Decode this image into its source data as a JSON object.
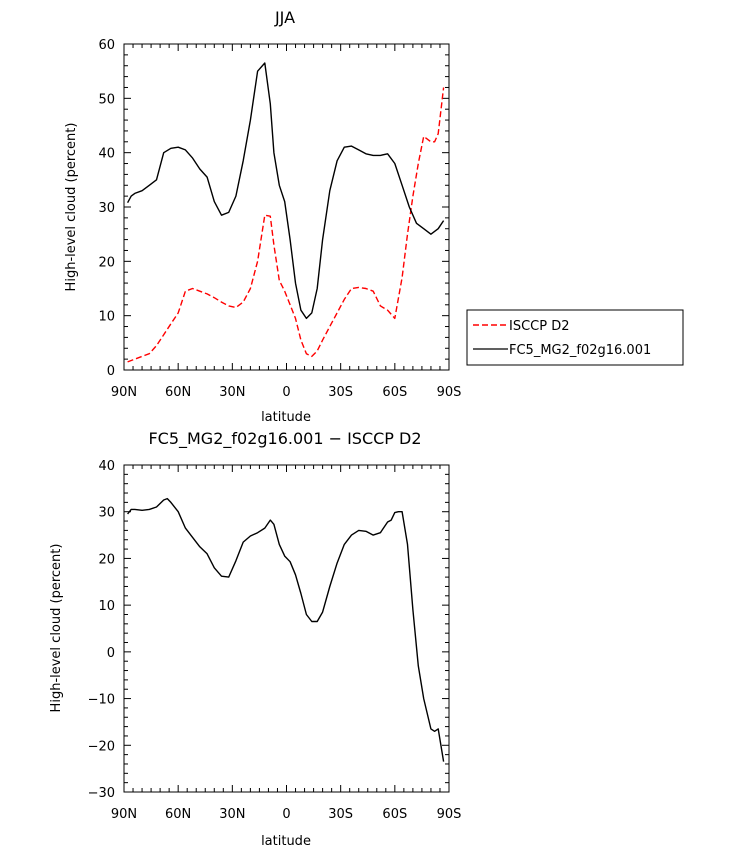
{
  "chart_data": [
    {
      "type": "line",
      "title": "JJA",
      "xlabel": "latitude",
      "ylabel": "High-level cloud (percent)",
      "xlim": [
        90,
        -90
      ],
      "ylim": [
        0,
        60
      ],
      "xticks": [
        {
          "value": 90,
          "label": "90N"
        },
        {
          "value": 60,
          "label": "60N"
        },
        {
          "value": 30,
          "label": "30N"
        },
        {
          "value": 0,
          "label": "0"
        },
        {
          "value": -30,
          "label": "30S"
        },
        {
          "value": -60,
          "label": "60S"
        },
        {
          "value": -90,
          "label": "90S"
        }
      ],
      "yticks": [
        0,
        10,
        20,
        30,
        40,
        50,
        60
      ],
      "grid": false,
      "legend": "right, outside plot",
      "series": [
        {
          "name": "ISCCP D2",
          "color": "#ff0000",
          "dash": "dashed",
          "x": [
            88,
            84,
            80,
            76,
            72,
            68,
            64,
            60,
            56,
            52,
            48,
            44,
            40,
            36,
            32,
            28,
            24,
            20,
            16,
            12,
            9,
            7,
            4,
            1,
            -2,
            -5,
            -8,
            -11,
            -14,
            -17,
            -20,
            -24,
            -28,
            -32,
            -36,
            -40,
            -44,
            -48,
            -52,
            -56,
            -60,
            -64,
            -67,
            -70,
            -73,
            -76,
            -80,
            -82,
            -84,
            -87
          ],
          "y": [
            1.5,
            2,
            2.5,
            3,
            4.5,
            6.5,
            8.5,
            10.5,
            14.5,
            15,
            14.5,
            14,
            13.3,
            12.5,
            11.8,
            11.5,
            12.5,
            15,
            20,
            28.5,
            28.3,
            23,
            16.5,
            14.5,
            12,
            9.5,
            5.5,
            3,
            2.5,
            3.5,
            5.5,
            8,
            10.5,
            13,
            15,
            15.2,
            15,
            14.5,
            11.8,
            11,
            9.5,
            17,
            25,
            32,
            38,
            43,
            42,
            42,
            43.5,
            52
          ]
        },
        {
          "name": "FC5_MG2_f02g16.001",
          "color": "#000000",
          "dash": "solid",
          "x": [
            88,
            86,
            84,
            80,
            76,
            72,
            68,
            64,
            60,
            56,
            52,
            48,
            44,
            40,
            36,
            32,
            28,
            24,
            20,
            16,
            12,
            9,
            7,
            4,
            1,
            -2,
            -5,
            -8,
            -11,
            -14,
            -17,
            -20,
            -24,
            -28,
            -32,
            -36,
            -40,
            -44,
            -48,
            -52,
            -56,
            -60,
            -64,
            -68,
            -72,
            -76,
            -80,
            -84,
            -87
          ],
          "y": [
            30.8,
            32,
            32.5,
            33,
            34,
            35,
            40,
            40.8,
            41,
            40.5,
            39,
            37,
            35.5,
            31,
            28.5,
            29,
            32,
            38.5,
            46,
            55,
            56.5,
            49,
            40,
            34,
            31,
            24,
            16,
            11,
            9.5,
            10.5,
            15,
            24,
            33,
            38.5,
            41,
            41.2,
            40.5,
            39.8,
            39.5,
            39.5,
            39.8,
            38,
            34,
            30,
            27,
            26,
            25,
            26,
            27.5
          ]
        }
      ]
    },
    {
      "type": "line",
      "title": "FC5_MG2_f02g16.001 − ISCCP D2",
      "xlabel": "latitude",
      "ylabel": "High-level cloud (percent)",
      "xlim": [
        90,
        -90
      ],
      "ylim": [
        -30,
        40
      ],
      "xticks": [
        {
          "value": 90,
          "label": "90N"
        },
        {
          "value": 60,
          "label": "60N"
        },
        {
          "value": 30,
          "label": "30N"
        },
        {
          "value": 0,
          "label": "0"
        },
        {
          "value": -30,
          "label": "30S"
        },
        {
          "value": -60,
          "label": "60S"
        },
        {
          "value": -90,
          "label": "90S"
        }
      ],
      "yticks": [
        -30,
        -20,
        -10,
        0,
        10,
        20,
        30,
        40
      ],
      "grid": false,
      "series": [
        {
          "color": "#000000",
          "dash": "solid",
          "x": [
            88,
            86,
            84,
            80,
            76,
            72,
            68,
            66,
            64,
            60,
            56,
            52,
            48,
            44,
            40,
            36,
            32,
            28,
            24,
            20,
            16,
            12,
            9,
            7,
            4,
            1,
            -2,
            -5,
            -8,
            -11,
            -14,
            -17,
            -20,
            -24,
            -28,
            -32,
            -36,
            -40,
            -44,
            -48,
            -52,
            -56,
            -58,
            -60,
            -62,
            -64,
            -67,
            -70,
            -73,
            -76,
            -80,
            -82,
            -84,
            -87
          ],
          "y": [
            29.5,
            30.5,
            30.5,
            30.3,
            30.5,
            31,
            32.5,
            32.8,
            32,
            30,
            26.5,
            24.5,
            22.5,
            21,
            18,
            16.2,
            16,
            19.5,
            23.5,
            24.8,
            25.5,
            26.5,
            28.2,
            27.3,
            23,
            20.5,
            19.3,
            16.5,
            12.5,
            8,
            6.5,
            6.5,
            8.5,
            14,
            19,
            23,
            25,
            26,
            25.8,
            25,
            25.5,
            27.8,
            28.2,
            29.8,
            30,
            30,
            23,
            9,
            -3,
            -10,
            -16.5,
            -17,
            -16.5,
            -23.5
          ]
        }
      ]
    }
  ]
}
